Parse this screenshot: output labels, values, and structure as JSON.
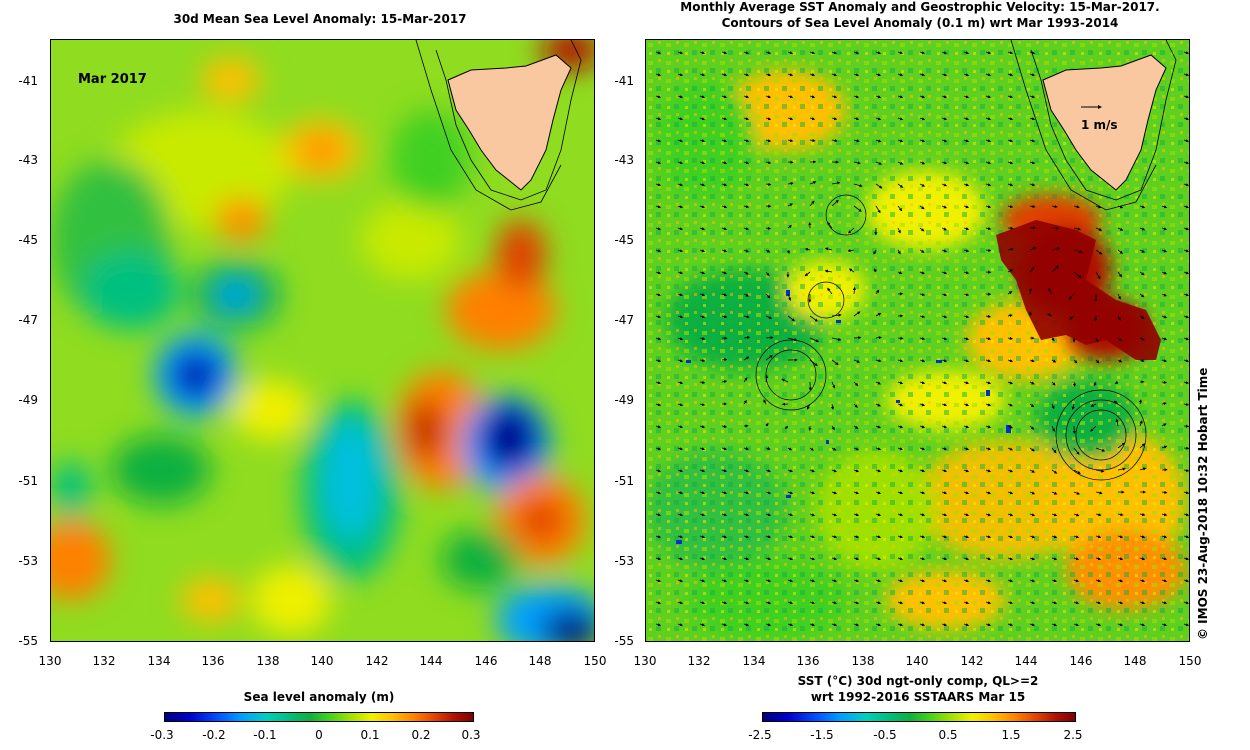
{
  "left_panel": {
    "title": "30d Mean Sea Level Anomaly: 15-Mar-2017",
    "month_label": "Mar 2017",
    "colorbar_title": "Sea level anomaly (m)",
    "colorbar_ticks": [
      "-0.3",
      "-0.2",
      "-0.1",
      "0",
      "0.1",
      "0.2",
      "0.3"
    ]
  },
  "right_panel": {
    "title_line1": "Monthly Average SST Anomaly  and Geostrophic Velocity: 15-Mar-2017.",
    "title_line2": "Contours of Sea Level Anomaly (0.1 m) wrt Mar 1993-2014",
    "velocity_scale_label": "1 m/s",
    "colorbar_title_line1": "SST (°C) 30d ngt-only comp, QL>=2",
    "colorbar_title_line2": "wrt 1992-2016 SSTAARS Mar 15",
    "colorbar_ticks": [
      "-2.5",
      "-1.5",
      "-0.5",
      "0.5",
      "1.5",
      "2.5"
    ]
  },
  "axes": {
    "lat_ticks": [
      "-41",
      "-43",
      "-45",
      "-47",
      "-49",
      "-51",
      "-53",
      "-55"
    ],
    "lon_ticks": [
      "130",
      "132",
      "134",
      "136",
      "138",
      "140",
      "142",
      "144",
      "146",
      "148",
      "150"
    ]
  },
  "credit": "© IMOS 23-Aug-2018 10:32 Hobart Time",
  "colors": {
    "land": "#f9c8a0",
    "palette": [
      "#000080",
      "#0000d0",
      "#0050ff",
      "#00a0ff",
      "#00d0c0",
      "#00c080",
      "#10b040",
      "#40d020",
      "#a0e000",
      "#f0f000",
      "#ffc000",
      "#ff8000",
      "#e04000",
      "#b01000",
      "#800000"
    ]
  }
}
